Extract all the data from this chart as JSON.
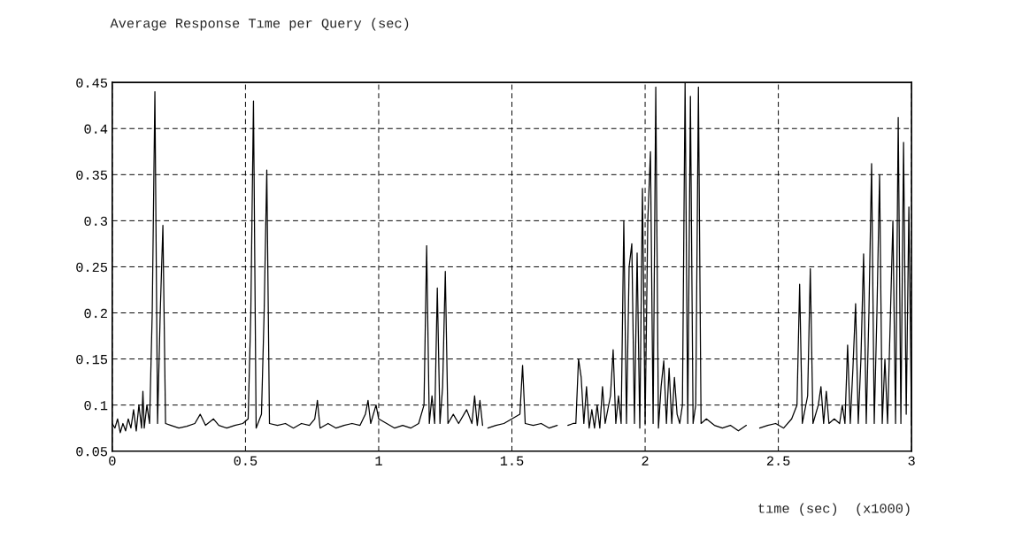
{
  "chart_data": {
    "type": "line",
    "title": "Average Response Tıme per Query (sec)",
    "xlabel": "tıme (sec)  (x1000)",
    "series": [
      {
        "color": "#000000",
        "x": [
          0,
          0.01,
          0.02,
          0.03,
          0.04,
          0.05,
          0.06,
          0.07,
          0.08,
          0.09,
          0.1,
          0.11,
          0.115,
          0.12,
          0.13,
          0.14,
          0.15,
          0.16,
          0.17,
          0.18,
          0.19,
          0.2,
          0.22,
          0.25,
          0.28,
          0.31,
          0.33,
          0.35,
          0.38,
          0.4,
          0.43,
          0.46,
          0.49,
          0.51,
          0.52,
          0.53,
          0.54,
          0.56,
          0.57,
          0.58,
          0.59,
          0.62,
          0.65,
          0.68,
          0.71,
          0.74,
          0.76,
          0.77,
          0.78,
          0.81,
          0.84,
          0.87,
          0.9,
          0.93,
          0.95,
          0.96,
          0.97,
          0.99,
          1.0,
          1.03,
          1.06,
          1.09,
          1.12,
          1.15,
          1.17,
          1.18,
          1.19,
          1.2,
          1.21,
          1.22,
          1.23,
          1.24,
          1.25,
          1.26,
          1.28,
          1.3,
          1.33,
          1.35,
          1.36,
          1.37,
          1.38,
          1.39,
          1.4,
          1.41,
          1.44,
          1.47,
          1.5,
          1.53,
          1.54,
          1.55,
          1.58,
          1.61,
          1.64,
          1.67,
          1.69,
          1.71,
          1.73,
          1.74,
          1.75,
          1.76,
          1.77,
          1.78,
          1.79,
          1.8,
          1.81,
          1.82,
          1.83,
          1.84,
          1.85,
          1.87,
          1.88,
          1.89,
          1.9,
          1.91,
          1.92,
          1.93,
          1.94,
          1.95,
          1.96,
          1.97,
          1.98,
          1.99,
          2.0,
          2.01,
          2.02,
          2.03,
          2.04,
          2.05,
          2.06,
          2.07,
          2.08,
          2.09,
          2.1,
          2.11,
          2.12,
          2.13,
          2.14,
          2.15,
          2.16,
          2.17,
          2.18,
          2.19,
          2.2,
          2.21,
          2.23,
          2.26,
          2.29,
          2.32,
          2.35,
          2.38,
          2.41,
          2.43,
          2.46,
          2.49,
          2.52,
          2.55,
          2.57,
          2.58,
          2.59,
          2.61,
          2.62,
          2.63,
          2.65,
          2.66,
          2.67,
          2.68,
          2.69,
          2.71,
          2.73,
          2.74,
          2.75,
          2.76,
          2.77,
          2.78,
          2.79,
          2.8,
          2.81,
          2.82,
          2.83,
          2.84,
          2.85,
          2.86,
          2.87,
          2.88,
          2.89,
          2.9,
          2.91,
          2.93,
          2.94,
          2.95,
          2.96,
          2.97,
          2.98,
          2.99,
          3.0
        ],
        "values": [
          0.08,
          0.075,
          0.085,
          0.07,
          0.08,
          0.072,
          0.085,
          0.075,
          0.095,
          0.072,
          0.1,
          0.075,
          0.115,
          0.075,
          0.1,
          0.08,
          0.2,
          0.44,
          0.08,
          0.2,
          0.295,
          0.08,
          0.078,
          0.075,
          0.077,
          0.08,
          0.09,
          0.078,
          0.085,
          0.078,
          0.075,
          0.078,
          0.08,
          0.085,
          0.2,
          0.43,
          0.075,
          0.09,
          0.2,
          0.355,
          0.08,
          0.078,
          0.08,
          0.075,
          0.08,
          0.078,
          0.085,
          0.105,
          0.075,
          0.08,
          0.075,
          0.078,
          0.08,
          0.078,
          0.09,
          0.105,
          0.08,
          0.1,
          0.085,
          0.08,
          0.075,
          0.078,
          0.075,
          0.08,
          0.1,
          0.273,
          0.08,
          0.11,
          0.08,
          0.227,
          0.08,
          0.12,
          0.245,
          0.08,
          0.09,
          0.08,
          0.095,
          0.08,
          0.11,
          0.078,
          0.105,
          0.078,
          null,
          0.075,
          0.078,
          0.08,
          0.085,
          0.09,
          0.143,
          0.08,
          0.078,
          0.08,
          0.075,
          0.078,
          null,
          0.078,
          0.08,
          0.08,
          0.15,
          0.13,
          0.08,
          0.12,
          0.075,
          0.095,
          0.075,
          0.1,
          0.075,
          0.12,
          0.08,
          0.11,
          0.16,
          0.08,
          0.11,
          0.08,
          0.3,
          0.08,
          0.25,
          0.275,
          0.08,
          0.265,
          0.075,
          0.335,
          0.08,
          0.3,
          0.375,
          0.08,
          0.445,
          0.075,
          0.12,
          0.148,
          0.08,
          0.14,
          0.08,
          0.13,
          0.09,
          0.08,
          0.1,
          0.45,
          0.08,
          0.435,
          0.08,
          0.1,
          0.445,
          0.08,
          0.085,
          0.078,
          0.075,
          0.078,
          0.072,
          0.078,
          null,
          0.075,
          0.078,
          0.08,
          0.075,
          0.085,
          0.1,
          0.231,
          0.08,
          0.11,
          0.248,
          0.08,
          0.1,
          0.12,
          0.08,
          0.115,
          0.08,
          0.085,
          0.08,
          0.1,
          0.08,
          0.165,
          0.08,
          0.14,
          0.21,
          0.08,
          0.15,
          0.264,
          0.08,
          0.2,
          0.362,
          0.08,
          0.2,
          0.35,
          0.08,
          0.15,
          0.08,
          0.3,
          0.08,
          0.412,
          0.08,
          0.385,
          0.09,
          0.315,
          0.078
        ]
      }
    ],
    "xlim": [
      0,
      3
    ],
    "ylim": [
      0.05,
      0.45
    ],
    "xticks": [
      0,
      0.5,
      1,
      1.5,
      2,
      2.5,
      3
    ],
    "yticks": [
      0.05,
      0.1,
      0.15,
      0.2,
      0.25,
      0.3,
      0.35,
      0.4,
      0.45
    ],
    "grid": true,
    "line_style": "solid"
  }
}
